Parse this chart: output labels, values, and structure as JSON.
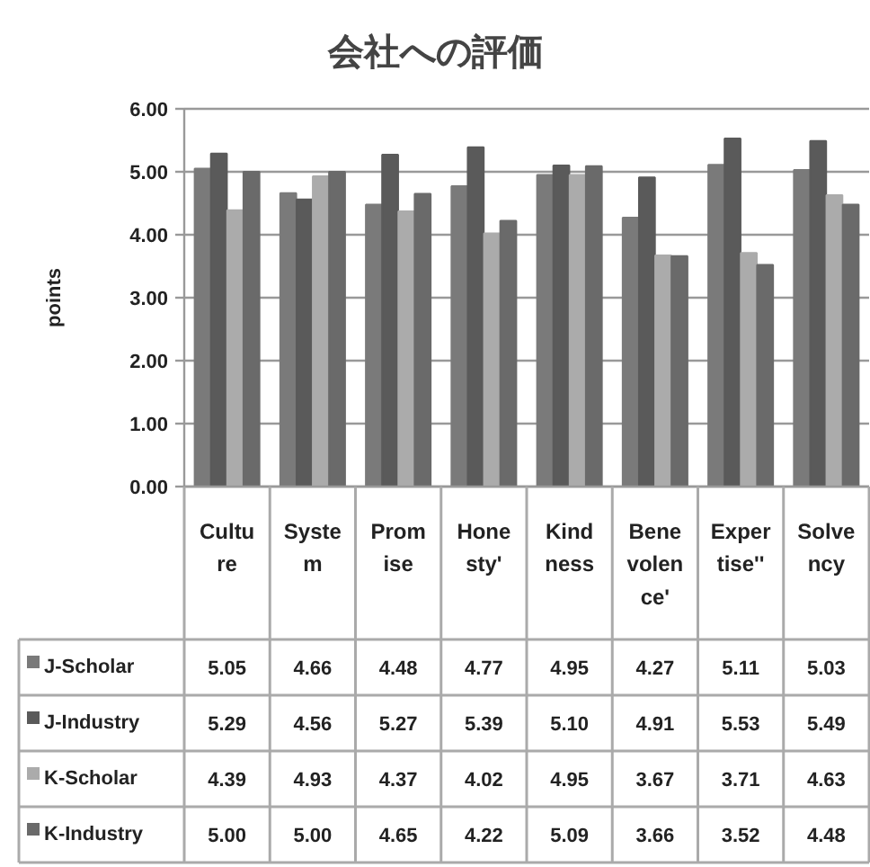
{
  "chart_data": {
    "type": "bar",
    "title": "会社への評価",
    "ylabel": "points",
    "categories": [
      "Cultu\nre",
      "Syste\nm",
      "Prom\nise",
      "Hone\nsty'",
      "Kind\nness",
      "Bene\nvolen\nce'",
      "Exper\ntise''",
      "Solve\nncy"
    ],
    "series": [
      {
        "name": "J-Scholar",
        "color": "#7a7a7a",
        "values": [
          5.05,
          4.66,
          4.48,
          4.77,
          4.95,
          4.27,
          5.11,
          5.03
        ],
        "value_labels": [
          "5.05",
          "4.66",
          "4.48",
          "4.77",
          "4.95",
          "4.27",
          "5.11",
          "5.03"
        ]
      },
      {
        "name": "J-Industry",
        "color": "#5a5a5a",
        "values": [
          5.29,
          4.56,
          5.27,
          5.39,
          5.1,
          4.91,
          5.53,
          5.49
        ],
        "value_labels": [
          "5.29",
          "4.56",
          "5.27",
          "5.39",
          "5.10",
          "4.91",
          "5.53",
          "5.49"
        ]
      },
      {
        "name": "K-Scholar",
        "color": "#ababab",
        "values": [
          4.39,
          4.93,
          4.37,
          4.02,
          4.95,
          3.67,
          3.71,
          4.63
        ],
        "value_labels": [
          "4.39",
          "4.93",
          "4.37",
          "4.02",
          "4.95",
          "3.67",
          "3.71",
          "4.63"
        ]
      },
      {
        "name": "K-Industry",
        "color": "#6a6a6a",
        "values": [
          5.0,
          5.0,
          4.65,
          4.22,
          5.09,
          3.66,
          3.52,
          4.48
        ],
        "value_labels": [
          "5.00",
          "5.00",
          "4.65",
          "4.22",
          "5.09",
          "3.66",
          "3.52",
          "4.48"
        ]
      }
    ],
    "ylim": [
      0,
      6
    ],
    "yticks": [
      {
        "value": 0,
        "label": "0.00"
      },
      {
        "value": 1,
        "label": "1.00"
      },
      {
        "value": 2,
        "label": "2.00"
      },
      {
        "value": 3,
        "label": "3.00"
      },
      {
        "value": 4,
        "label": "4.00"
      },
      {
        "value": 5,
        "label": "5.00"
      },
      {
        "value": 6,
        "label": "6.00"
      }
    ],
    "grid": "y",
    "legend": "bottom"
  }
}
